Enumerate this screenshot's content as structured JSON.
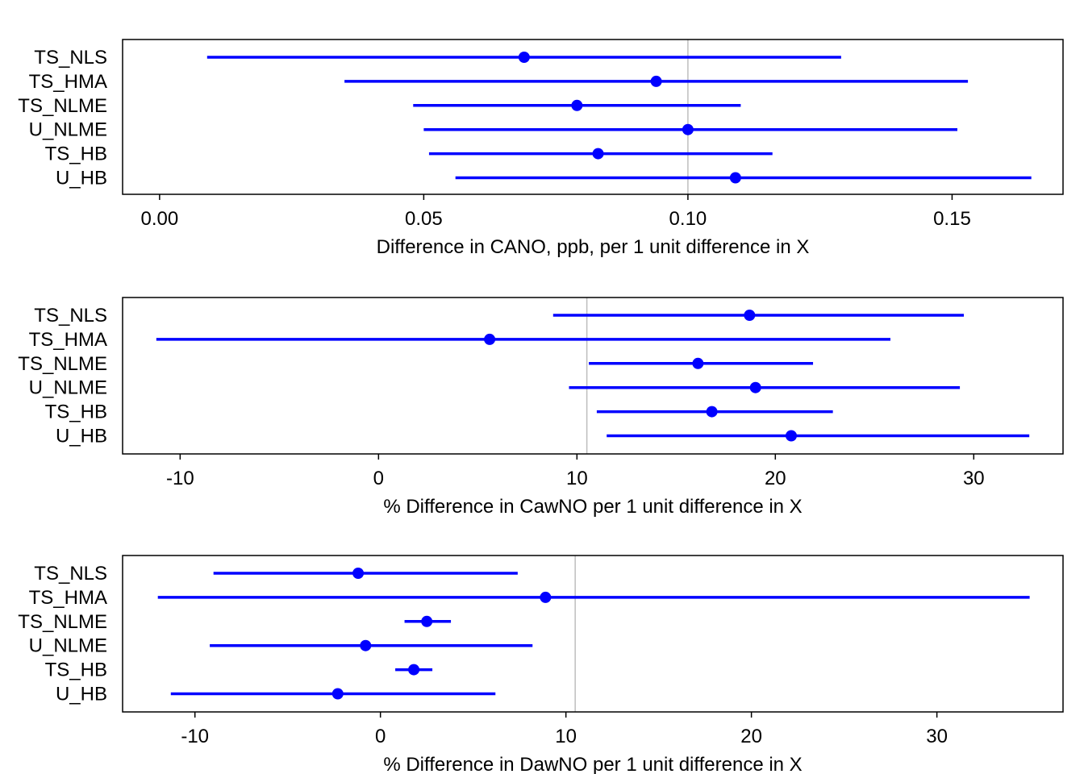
{
  "colors": {
    "point": "#0000ff",
    "interval": "#0000ff",
    "reference_line": "#bebebe",
    "frame": "#000000"
  },
  "chart_data": [
    {
      "type": "scatter",
      "subtype": "forest-plot",
      "xlabel": "Difference in CANO, ppb, per 1 unit difference in X",
      "ylabel": "",
      "categories": [
        "TS_NLS",
        "TS_HMA",
        "TS_NLME",
        "U_NLME",
        "TS_HB",
        "U_HB"
      ],
      "estimates": [
        0.069,
        0.094,
        0.079,
        0.1,
        0.083,
        0.109
      ],
      "lower": [
        0.009,
        0.035,
        0.048,
        0.05,
        0.051,
        0.056
      ],
      "upper": [
        0.129,
        0.153,
        0.11,
        0.151,
        0.116,
        0.165
      ],
      "reference_line": 0.1,
      "xlim": [
        -0.007,
        0.171
      ],
      "xticks": [
        0.0,
        0.05,
        0.1,
        0.15
      ],
      "xtick_labels": [
        "0.00",
        "0.05",
        "0.10",
        "0.15"
      ],
      "grid": false
    },
    {
      "type": "scatter",
      "subtype": "forest-plot",
      "xlabel": "% Difference in CawNO per 1 unit difference in X",
      "ylabel": "",
      "categories": [
        "TS_NLS",
        "TS_HMA",
        "TS_NLME",
        "U_NLME",
        "TS_HB",
        "U_HB"
      ],
      "estimates": [
        18.7,
        5.6,
        16.1,
        19.0,
        16.8,
        20.8
      ],
      "lower": [
        8.8,
        -11.2,
        10.6,
        9.6,
        11.0,
        11.5
      ],
      "upper": [
        29.5,
        25.8,
        21.9,
        29.3,
        22.9,
        32.8
      ],
      "reference_line": 10.5,
      "xlim": [
        -12.9,
        34.5
      ],
      "xticks": [
        -10,
        0,
        10,
        20,
        30
      ],
      "xtick_labels": [
        "-10",
        "0",
        "10",
        "20",
        "30"
      ],
      "grid": false
    },
    {
      "type": "scatter",
      "subtype": "forest-plot",
      "xlabel": "% Difference in DawNO per 1 unit difference in X",
      "ylabel": "",
      "categories": [
        "TS_NLS",
        "TS_HMA",
        "TS_NLME",
        "U_NLME",
        "TS_HB",
        "U_HB"
      ],
      "estimates": [
        -1.2,
        8.9,
        2.5,
        -0.8,
        1.8,
        -2.3
      ],
      "lower": [
        -9.0,
        -12.0,
        1.3,
        -9.2,
        0.8,
        -11.3
      ],
      "upper": [
        7.4,
        35.0,
        3.8,
        8.2,
        2.8,
        6.2
      ],
      "reference_line": 10.5,
      "xlim": [
        -13.9,
        36.8
      ],
      "xticks": [
        -10,
        0,
        10,
        20,
        30
      ],
      "xtick_labels": [
        "-10",
        "0",
        "10",
        "20",
        "30"
      ],
      "grid": false
    }
  ]
}
